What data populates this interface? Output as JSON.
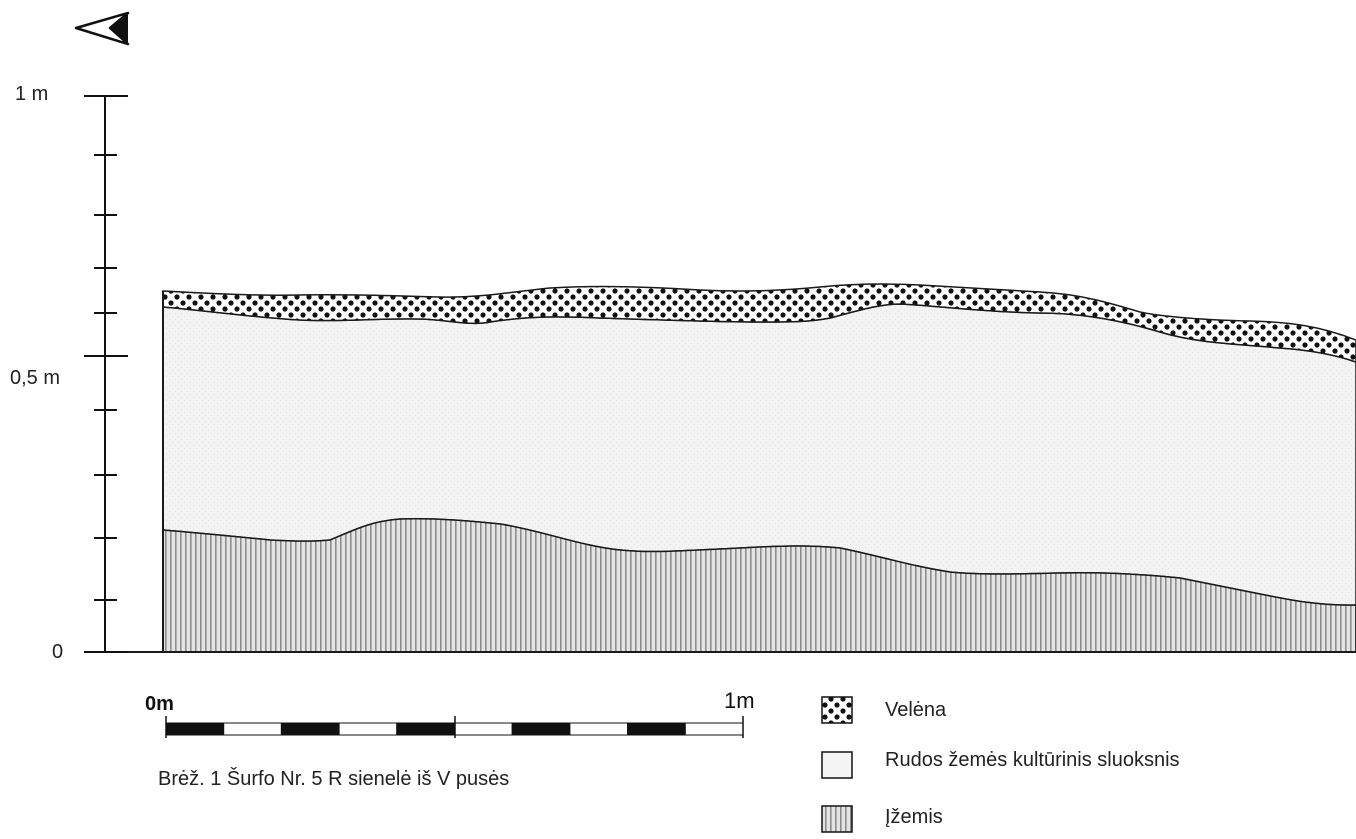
{
  "vertical_scale": {
    "labels": [
      {
        "key": "top",
        "text": "1 m",
        "value": 1.0
      },
      {
        "key": "mid",
        "text": "0,5 m",
        "value": 0.5
      },
      {
        "key": "zero",
        "text": "0",
        "value": 0.0
      }
    ]
  },
  "horizontal_scale": {
    "start_label": "0m",
    "end_label": "1m",
    "segments": 10
  },
  "caption": "Brėž. 1 Šurfo Nr. 5 R sienelė iš V pusės",
  "legend": [
    {
      "key": "velena",
      "label": "Velėna",
      "pattern": "dots"
    },
    {
      "key": "ruda",
      "label": "Rudos žemės kultūrinis sluoksnis",
      "pattern": "plain"
    },
    {
      "key": "izemis",
      "label": "Įžemis",
      "pattern": "vertical-lines"
    }
  ],
  "colors": {
    "ink": "#1a1a1a",
    "soil_fill": "#f1f1f1",
    "subsoil_fill": "#c8c8c8",
    "bar_dark": "#111111"
  }
}
